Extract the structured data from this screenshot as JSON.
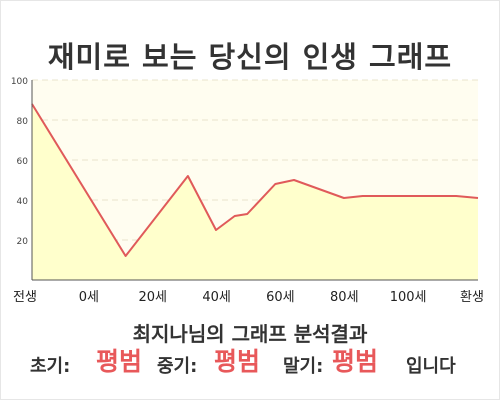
{
  "title": "재미로 보는 당신의 인생 그래프",
  "chart_data": {
    "type": "area",
    "x_tick_labels": [
      "전생",
      "0세",
      "20세",
      "40세",
      "60세",
      "80세",
      "100세",
      "환생"
    ],
    "y_ticks": [
      20,
      40,
      60,
      80,
      100
    ],
    "ylim": [
      0,
      100
    ],
    "grid": true,
    "series": [
      {
        "x": [
          -30,
          0,
          20,
          29,
          35,
          39,
          48,
          54,
          70,
          76,
          86,
          94,
          100,
          106,
          113
        ],
        "values": [
          88,
          12,
          52,
          25,
          32,
          33,
          48,
          50,
          41,
          42,
          42,
          42,
          42,
          42,
          41
        ]
      }
    ],
    "colors": {
      "line": "#e05a5a",
      "fill": "#ffffcc",
      "plot_bg": "#fffdf0",
      "grid": "#e8e4cc"
    }
  },
  "summary": "최지나님의 그래프 분석결과",
  "verdict": {
    "early_label": "초기:",
    "early_value": "평범",
    "mid_label": "중기:",
    "mid_value": "평범",
    "late_label": "말기:",
    "late_value": "평범",
    "suffix": "입니다"
  },
  "accent": "#e8585a"
}
